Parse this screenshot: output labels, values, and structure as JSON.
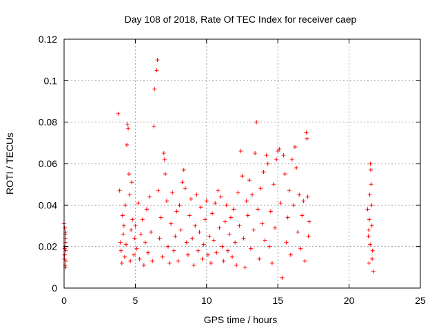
{
  "chart_data": {
    "type": "scatter",
    "title": "Day 108 of 2018, Rate Of TEC Index for receiver caep",
    "xlabel": "GPS time / hours",
    "ylabel": "ROTI / TECUs",
    "xlim": [
      0,
      25
    ],
    "ylim": [
      0,
      0.12
    ],
    "xticks": [
      0,
      5,
      10,
      15,
      20,
      25
    ],
    "xtick_labels": [
      "0",
      "5",
      "10",
      "15",
      "20",
      "25"
    ],
    "yticks": [
      0,
      0.02,
      0.04,
      0.06,
      0.08,
      0.1,
      0.12
    ],
    "ytick_labels": [
      "0",
      "0.02",
      "0.04",
      "0.06",
      "0.08",
      "0.1",
      "0.12"
    ],
    "grid": true,
    "marker": "+",
    "series_color": "#ff0000",
    "series": [
      {
        "name": "ROTI",
        "points": [
          [
            0.0,
            0.031
          ],
          [
            0.05,
            0.029
          ],
          [
            0.08,
            0.026
          ],
          [
            0.1,
            0.022
          ],
          [
            0.12,
            0.018
          ],
          [
            0.02,
            0.014
          ],
          [
            0.07,
            0.011
          ],
          [
            0.1,
            0.01
          ],
          [
            0.13,
            0.013
          ],
          [
            0.04,
            0.019
          ],
          [
            0.09,
            0.024
          ],
          [
            0.11,
            0.027
          ],
          [
            0.03,
            0.016
          ],
          [
            0.06,
            0.02
          ],
          [
            3.8,
            0.084
          ],
          [
            3.9,
            0.047
          ],
          [
            3.95,
            0.022
          ],
          [
            4.0,
            0.018
          ],
          [
            4.05,
            0.012
          ],
          [
            4.1,
            0.035
          ],
          [
            4.15,
            0.026
          ],
          [
            4.2,
            0.03
          ],
          [
            4.25,
            0.015
          ],
          [
            4.3,
            0.04
          ],
          [
            4.35,
            0.021
          ],
          [
            4.4,
            0.069
          ],
          [
            4.45,
            0.079
          ],
          [
            4.5,
            0.077
          ],
          [
            4.55,
            0.055
          ],
          [
            4.6,
            0.045
          ],
          [
            4.65,
            0.013
          ],
          [
            4.7,
            0.028
          ],
          [
            4.75,
            0.051
          ],
          [
            4.8,
            0.033
          ],
          [
            4.9,
            0.016
          ],
          [
            4.95,
            0.024
          ],
          [
            5.0,
            0.03
          ],
          [
            5.1,
            0.019
          ],
          [
            5.2,
            0.041
          ],
          [
            5.3,
            0.014
          ],
          [
            5.4,
            0.026
          ],
          [
            5.5,
            0.033
          ],
          [
            5.6,
            0.011
          ],
          [
            5.7,
            0.022
          ],
          [
            5.8,
            0.038
          ],
          [
            5.9,
            0.017
          ],
          [
            6.0,
            0.044
          ],
          [
            6.1,
            0.027
          ],
          [
            6.2,
            0.013
          ],
          [
            6.3,
            0.078
          ],
          [
            6.35,
            0.096
          ],
          [
            6.5,
            0.105
          ],
          [
            6.55,
            0.11
          ],
          [
            6.6,
            0.047
          ],
          [
            6.7,
            0.024
          ],
          [
            6.8,
            0.034
          ],
          [
            6.9,
            0.015
          ],
          [
            7.0,
            0.065
          ],
          [
            7.05,
            0.062
          ],
          [
            7.1,
            0.055
          ],
          [
            7.2,
            0.042
          ],
          [
            7.3,
            0.02
          ],
          [
            7.4,
            0.012
          ],
          [
            7.5,
            0.031
          ],
          [
            7.6,
            0.046
          ],
          [
            7.7,
            0.018
          ],
          [
            7.8,
            0.025
          ],
          [
            7.9,
            0.037
          ],
          [
            8.0,
            0.013
          ],
          [
            8.1,
            0.04
          ],
          [
            8.2,
            0.028
          ],
          [
            8.3,
            0.051
          ],
          [
            8.4,
            0.057
          ],
          [
            8.5,
            0.048
          ],
          [
            8.6,
            0.022
          ],
          [
            8.7,
            0.016
          ],
          [
            8.8,
            0.035
          ],
          [
            8.9,
            0.043
          ],
          [
            9.0,
            0.024
          ],
          [
            9.1,
            0.011
          ],
          [
            9.2,
            0.03
          ],
          [
            9.3,
            0.045
          ],
          [
            9.4,
            0.018
          ],
          [
            9.5,
            0.027
          ],
          [
            9.6,
            0.039
          ],
          [
            9.7,
            0.014
          ],
          [
            9.8,
            0.021
          ],
          [
            9.9,
            0.033
          ],
          [
            10.0,
            0.042
          ],
          [
            10.1,
            0.016
          ],
          [
            10.2,
            0.025
          ],
          [
            10.3,
            0.012
          ],
          [
            10.4,
            0.036
          ],
          [
            10.5,
            0.023
          ],
          [
            10.6,
            0.041
          ],
          [
            10.7,
            0.017
          ],
          [
            10.8,
            0.047
          ],
          [
            10.9,
            0.029
          ],
          [
            11.0,
            0.044
          ],
          [
            11.1,
            0.02
          ],
          [
            11.2,
            0.013
          ],
          [
            11.3,
            0.032
          ],
          [
            11.4,
            0.04
          ],
          [
            11.5,
            0.018
          ],
          [
            11.6,
            0.026
          ],
          [
            11.7,
            0.034
          ],
          [
            11.8,
            0.015
          ],
          [
            11.9,
            0.038
          ],
          [
            12.0,
            0.022
          ],
          [
            12.1,
            0.011
          ],
          [
            12.2,
            0.046
          ],
          [
            12.3,
            0.03
          ],
          [
            12.4,
            0.066
          ],
          [
            12.5,
            0.054
          ],
          [
            12.6,
            0.024
          ],
          [
            12.7,
            0.01
          ],
          [
            12.8,
            0.042
          ],
          [
            12.9,
            0.035
          ],
          [
            13.0,
            0.052
          ],
          [
            13.1,
            0.019
          ],
          [
            13.2,
            0.045
          ],
          [
            13.3,
            0.028
          ],
          [
            13.4,
            0.065
          ],
          [
            13.5,
            0.08
          ],
          [
            13.6,
            0.038
          ],
          [
            13.7,
            0.014
          ],
          [
            13.8,
            0.048
          ],
          [
            13.9,
            0.031
          ],
          [
            14.0,
            0.056
          ],
          [
            14.1,
            0.023
          ],
          [
            14.2,
            0.064
          ],
          [
            14.3,
            0.06
          ],
          [
            14.4,
            0.02
          ],
          [
            14.5,
            0.037
          ],
          [
            14.6,
            0.012
          ],
          [
            14.7,
            0.05
          ],
          [
            14.8,
            0.029
          ],
          [
            14.9,
            0.062
          ],
          [
            15.0,
            0.066
          ],
          [
            15.1,
            0.067
          ],
          [
            15.2,
            0.041
          ],
          [
            15.3,
            0.005
          ],
          [
            15.4,
            0.064
          ],
          [
            15.5,
            0.055
          ],
          [
            15.6,
            0.022
          ],
          [
            15.7,
            0.034
          ],
          [
            15.8,
            0.047
          ],
          [
            15.9,
            0.016
          ],
          [
            16.0,
            0.062
          ],
          [
            16.1,
            0.04
          ],
          [
            16.2,
            0.068
          ],
          [
            16.3,
            0.058
          ],
          [
            16.4,
            0.027
          ],
          [
            16.5,
            0.045
          ],
          [
            16.6,
            0.019
          ],
          [
            16.7,
            0.035
          ],
          [
            16.8,
            0.042
          ],
          [
            16.9,
            0.013
          ],
          [
            17.0,
            0.075
          ],
          [
            17.05,
            0.072
          ],
          [
            17.1,
            0.044
          ],
          [
            17.15,
            0.025
          ],
          [
            17.2,
            0.032
          ],
          [
            21.3,
            0.038
          ],
          [
            21.35,
            0.025
          ],
          [
            21.4,
            0.012
          ],
          [
            21.45,
            0.045
          ],
          [
            21.5,
            0.06
          ],
          [
            21.52,
            0.057
          ],
          [
            21.55,
            0.05
          ],
          [
            21.6,
            0.03
          ],
          [
            21.65,
            0.018
          ],
          [
            21.7,
            0.008
          ],
          [
            21.42,
            0.033
          ],
          [
            21.48,
            0.021
          ],
          [
            21.58,
            0.04
          ],
          [
            21.62,
            0.014
          ],
          [
            21.38,
            0.028
          ]
        ]
      }
    ]
  }
}
